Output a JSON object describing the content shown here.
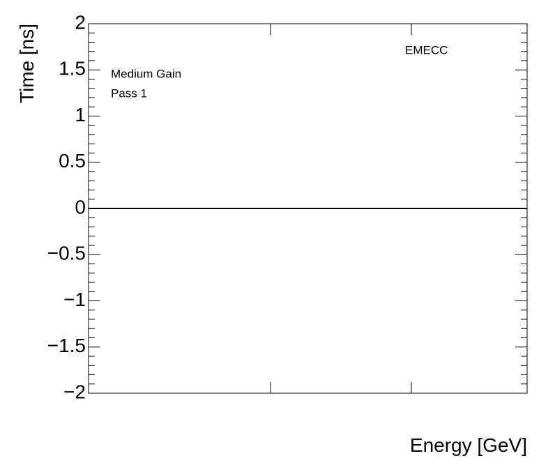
{
  "chart_data": {
    "type": "line",
    "x_label": "Energy [GeV]",
    "y_label": "Time [ns]",
    "annotations": [
      "Medium Gain",
      "Pass 1",
      "EMECC"
    ],
    "ylim": [
      -2,
      2
    ],
    "yticks": [
      {
        "value": -2,
        "label": "−2"
      },
      {
        "value": -1.5,
        "label": "−1.5"
      },
      {
        "value": -1,
        "label": "−1"
      },
      {
        "value": -0.5,
        "label": "−0.5"
      },
      0,
      0.5,
      1,
      1.5,
      2
    ],
    "reference_line": 0,
    "color": "#000000"
  }
}
